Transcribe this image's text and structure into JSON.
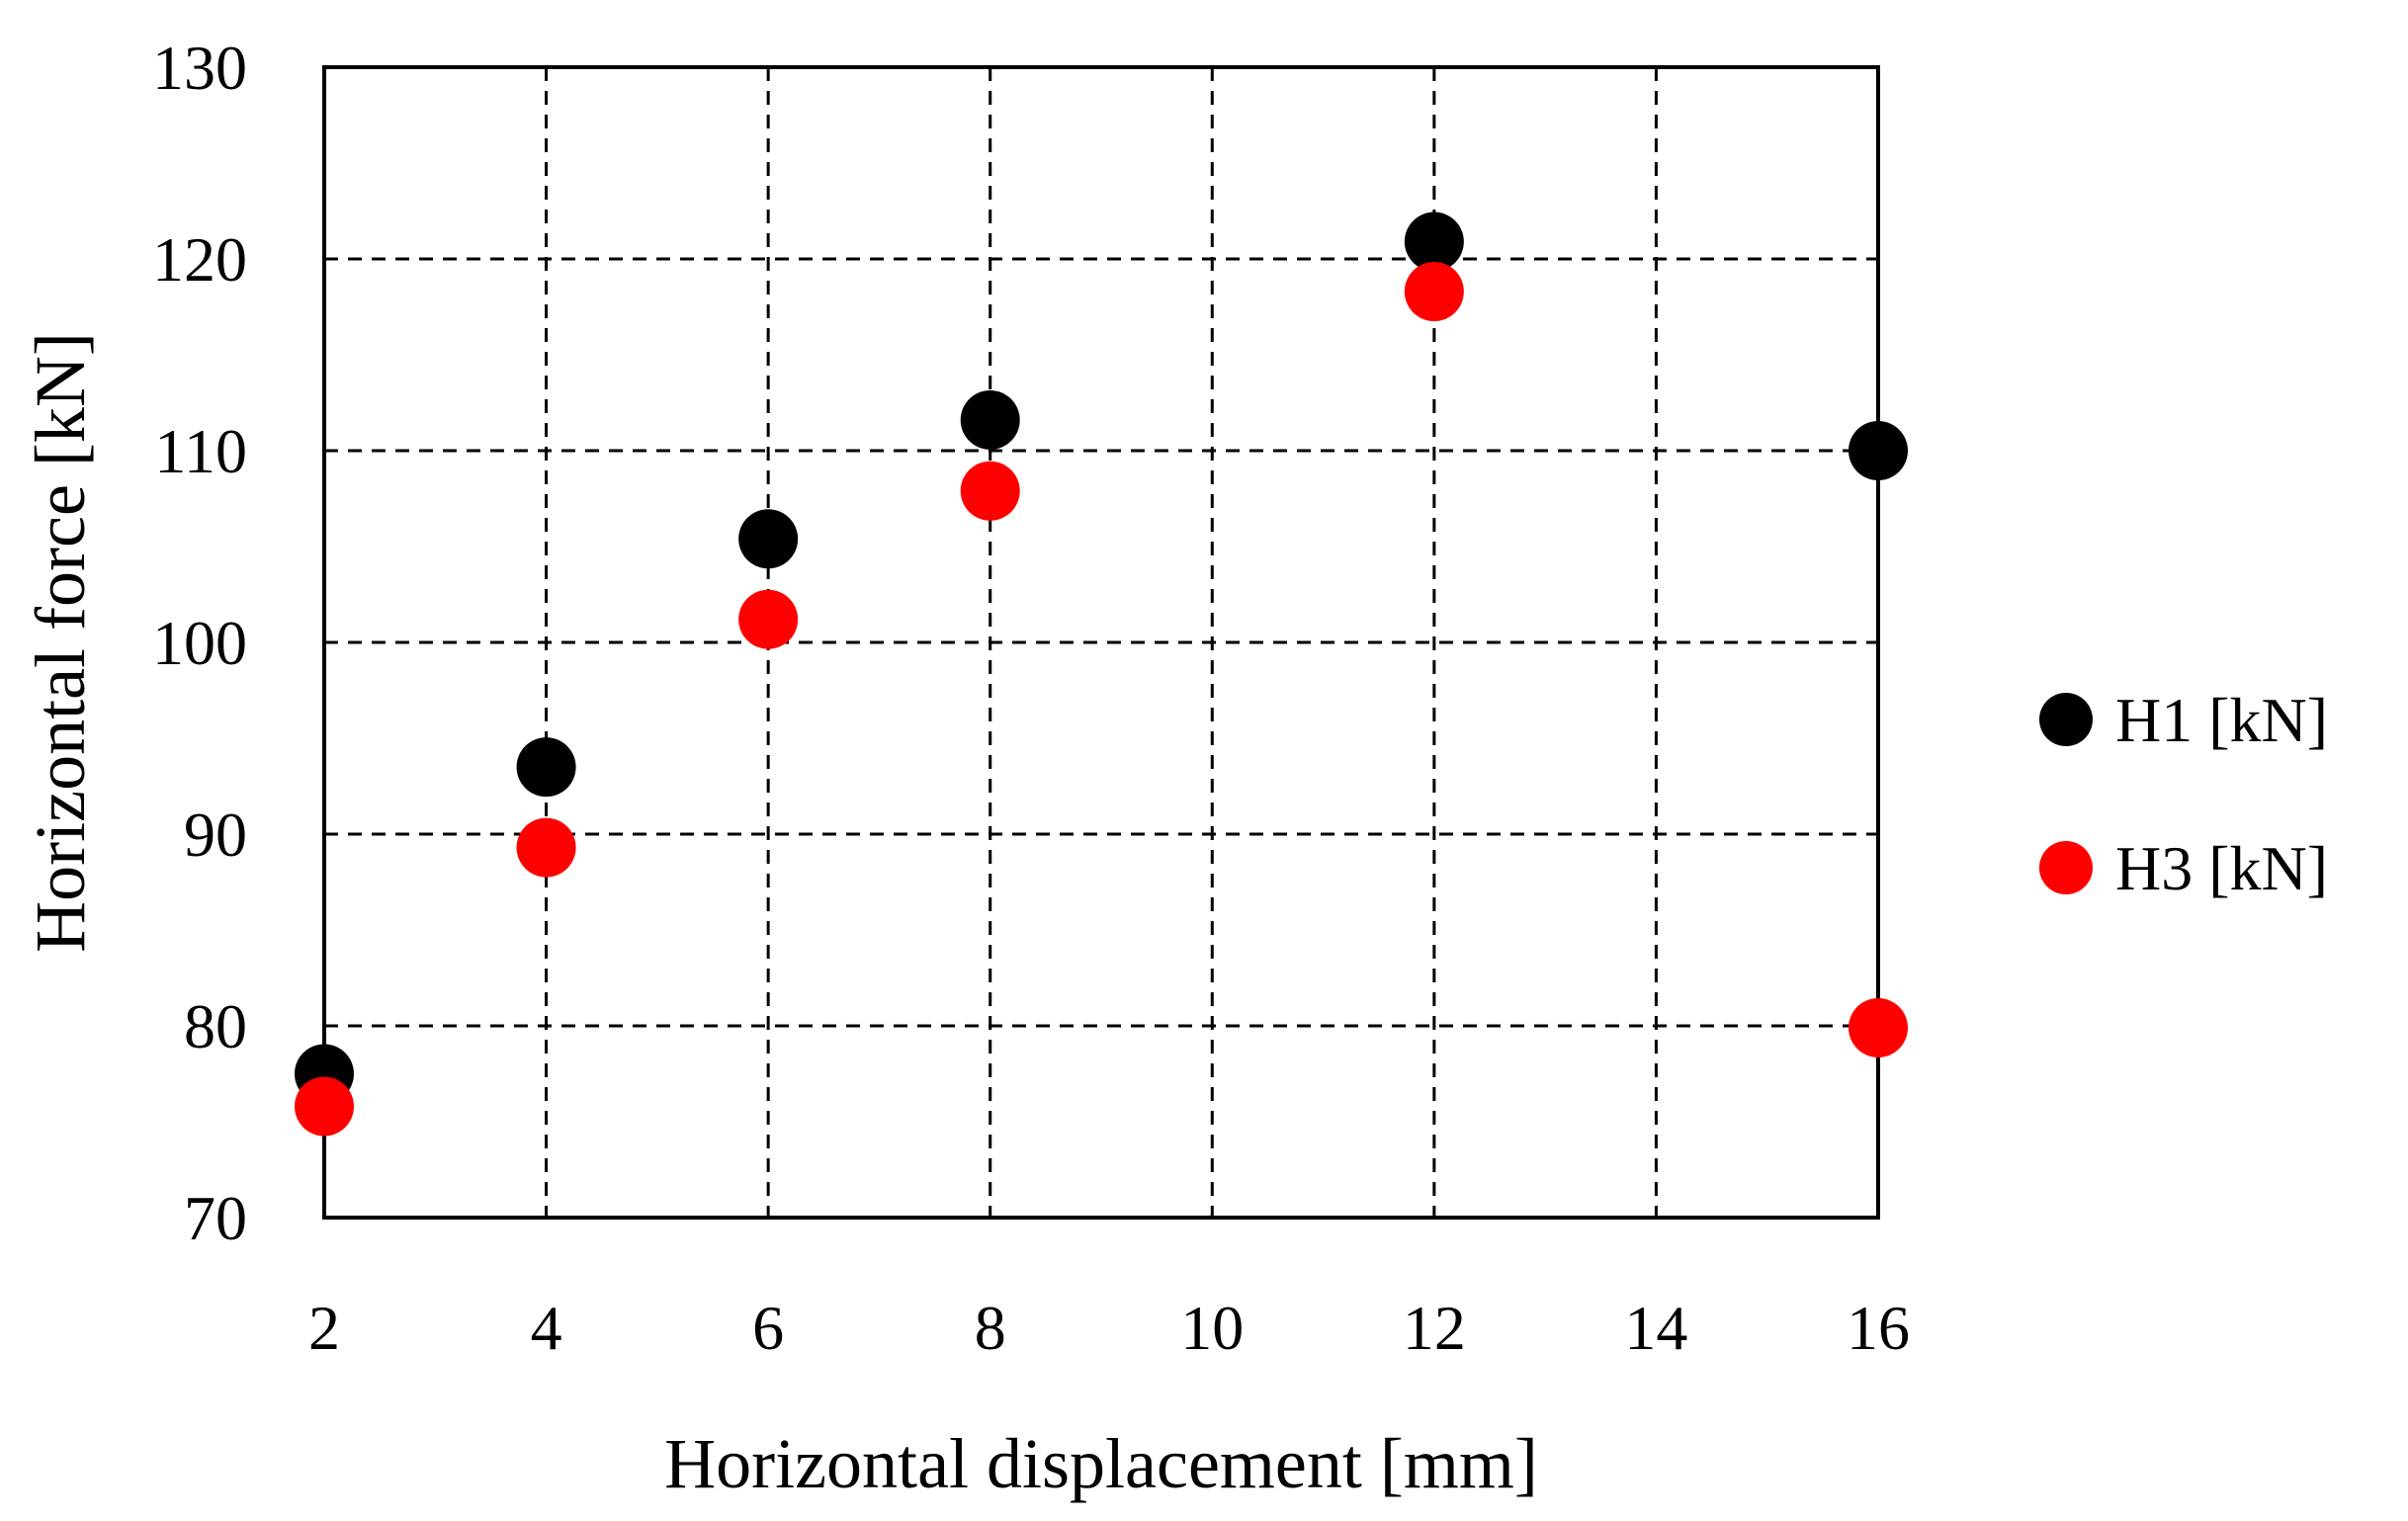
{
  "chart_data": {
    "type": "scatter",
    "title": "",
    "xlabel": "Horizontal displacement [mm]",
    "ylabel": "Horizontal force [kN]",
    "categories": [
      "2",
      "4",
      "6",
      "8",
      "10",
      "12",
      "14",
      "16"
    ],
    "ylim": [
      70,
      130
    ],
    "yticks": [
      "70",
      "80",
      "90",
      "100",
      "110",
      "120",
      "130"
    ],
    "grid": true,
    "legend_position": "right",
    "series": [
      {
        "name": "H1 [kN]",
        "color": "#000000",
        "points": [
          {
            "x": "2",
            "y": 77.5
          },
          {
            "x": "4",
            "y": 93.5
          },
          {
            "x": "6",
            "y": 105.4
          },
          {
            "x": "8",
            "y": 111.6
          },
          {
            "x": "12",
            "y": 120.9
          },
          {
            "x": "16",
            "y": 110.0
          }
        ]
      },
      {
        "name": "H3 [kN]",
        "color": "#ff0000",
        "points": [
          {
            "x": "2",
            "y": 75.8
          },
          {
            "x": "4",
            "y": 89.3
          },
          {
            "x": "6",
            "y": 101.2
          },
          {
            "x": "8",
            "y": 107.9
          },
          {
            "x": "12",
            "y": 118.3
          },
          {
            "x": "16",
            "y": 79.9
          }
        ]
      }
    ]
  }
}
